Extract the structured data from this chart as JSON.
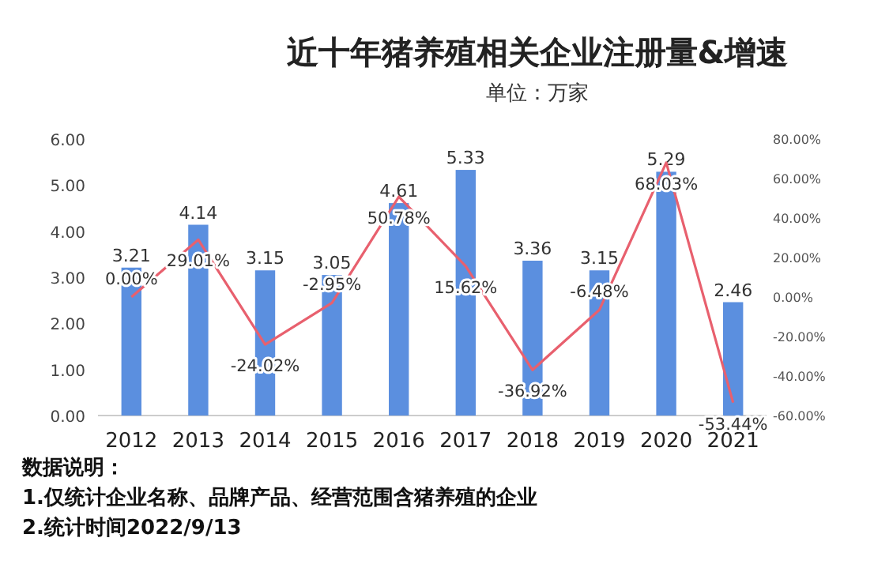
{
  "chart_data": {
    "type": "bar",
    "title": "近十年猪养殖相关企业注册量&增速",
    "subtitle": "单位：万家",
    "categories": [
      "2012",
      "2013",
      "2014",
      "2015",
      "2016",
      "2017",
      "2018",
      "2019",
      "2020",
      "2021"
    ],
    "series": [
      {
        "color": "#5b8fdf",
        "values": [
          3.21,
          4.14,
          3.15,
          3.05,
          4.61,
          5.33,
          3.36,
          3.15,
          5.29,
          2.46
        ],
        "value_labels": [
          "3.21",
          "4.14",
          "3.15",
          "3.05",
          "4.61",
          "5.33",
          "3.36",
          "3.15",
          "5.29",
          "2.46"
        ]
      },
      {
        "type": "line",
        "axis": "y2",
        "color": "#e8606e",
        "values": [
          0,
          29.01,
          -24.02,
          -2.95,
          50.78,
          15.62,
          -36.92,
          -6.48,
          68.03,
          -53.44
        ],
        "value_labels": [
          "0.00%",
          "29.01%",
          "-24.02%",
          "-2.95%",
          "50.78%",
          "15.62%",
          "-36.92%",
          "-6.48%",
          "68.03%",
          "-53.44%"
        ]
      }
    ],
    "ylim": [
      0,
      6
    ],
    "yticks": [
      {
        "value": 0,
        "label": "0.00"
      },
      {
        "value": 1,
        "label": "1.00"
      },
      {
        "value": 2,
        "label": "2.00"
      },
      {
        "value": 3,
        "label": "3.00"
      },
      {
        "value": 4,
        "label": "4.00"
      },
      {
        "value": 5,
        "label": "5.00"
      },
      {
        "value": 6,
        "label": "6.00"
      }
    ],
    "y2lim": [
      -60,
      80
    ],
    "y2ticks": [
      {
        "value": -60,
        "label": "-60.00%"
      },
      {
        "value": -40,
        "label": "-40.00%"
      },
      {
        "value": -20,
        "label": "-20.00%"
      },
      {
        "value": 0,
        "label": "0.00%"
      },
      {
        "value": 20,
        "label": "20.00%"
      },
      {
        "value": 40,
        "label": "40.00%"
      },
      {
        "value": 60,
        "label": "60.00%"
      },
      {
        "value": 80,
        "label": "80.00%"
      }
    ],
    "grid": false,
    "annotations": [
      "数据说明：",
      "1.仅统计企业名称、品牌产品、经营范围含猪养殖的企业",
      "2.统计时间2022/9/13"
    ]
  }
}
